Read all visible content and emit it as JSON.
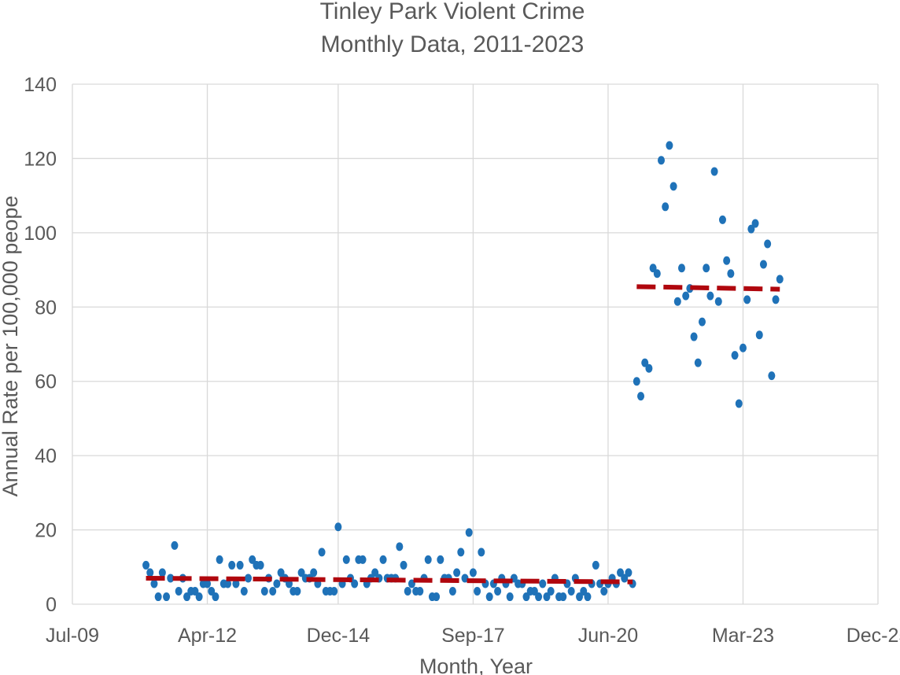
{
  "chart_data": {
    "type": "scatter",
    "title": "Tinley Park Violent Crime",
    "subtitle": "Monthly Data, 2011-2023",
    "xlabel": "Month, Year",
    "ylabel": "Annual Rate per 100,000 peope",
    "ylim": [
      0,
      140
    ],
    "xlim": [
      "2009-07",
      "2025-12"
    ],
    "grid": true,
    "y_ticks": [
      0,
      20,
      40,
      60,
      80,
      100,
      120,
      140
    ],
    "x_ticks": [
      {
        "date": "2009-07",
        "label": "Jul-09"
      },
      {
        "date": "2012-04",
        "label": "Apr-12"
      },
      {
        "date": "2014-12",
        "label": "Dec-14"
      },
      {
        "date": "2017-09",
        "label": "Sep-17"
      },
      {
        "date": "2020-06",
        "label": "Jun-20"
      },
      {
        "date": "2023-03",
        "label": "Mar-23"
      },
      {
        "date": "2025-12",
        "label": "Dec-25"
      }
    ],
    "series": [
      {
        "color": "#1f72b8",
        "points": [
          [
            "2011-01",
            10.5
          ],
          [
            "2011-02",
            8.5
          ],
          [
            "2011-03",
            5.5
          ],
          [
            "2011-04",
            2
          ],
          [
            "2011-05",
            8.5
          ],
          [
            "2011-06",
            2
          ],
          [
            "2011-07",
            7
          ],
          [
            "2011-08",
            15.8
          ],
          [
            "2011-09",
            3.5
          ],
          [
            "2011-10",
            7
          ],
          [
            "2011-11",
            2
          ],
          [
            "2011-12",
            3.5
          ],
          [
            "2012-01",
            3.5
          ],
          [
            "2012-02",
            2
          ],
          [
            "2012-03",
            5.5
          ],
          [
            "2012-04",
            5.5
          ],
          [
            "2012-05",
            3.5
          ],
          [
            "2012-06",
            2
          ],
          [
            "2012-07",
            12
          ],
          [
            "2012-08",
            5.5
          ],
          [
            "2012-09",
            5.5
          ],
          [
            "2012-10",
            10.5
          ],
          [
            "2012-11",
            5.5
          ],
          [
            "2012-12",
            10.5
          ],
          [
            "2013-01",
            3.5
          ],
          [
            "2013-02",
            7
          ],
          [
            "2013-03",
            12
          ],
          [
            "2013-04",
            10.5
          ],
          [
            "2013-05",
            10.5
          ],
          [
            "2013-06",
            3.5
          ],
          [
            "2013-07",
            7
          ],
          [
            "2013-08",
            3.5
          ],
          [
            "2013-09",
            5.5
          ],
          [
            "2013-10",
            8.5
          ],
          [
            "2013-11",
            7
          ],
          [
            "2013-12",
            5.5
          ],
          [
            "2014-01",
            3.5
          ],
          [
            "2014-02",
            3.5
          ],
          [
            "2014-03",
            8.5
          ],
          [
            "2014-04",
            7
          ],
          [
            "2014-05",
            7
          ],
          [
            "2014-06",
            8.5
          ],
          [
            "2014-07",
            5.5
          ],
          [
            "2014-08",
            14
          ],
          [
            "2014-09",
            3.5
          ],
          [
            "2014-10",
            3.5
          ],
          [
            "2014-11",
            3.5
          ],
          [
            "2014-12",
            20.8
          ],
          [
            "2015-01",
            5.5
          ],
          [
            "2015-02",
            12
          ],
          [
            "2015-03",
            7
          ],
          [
            "2015-04",
            5.5
          ],
          [
            "2015-05",
            12
          ],
          [
            "2015-06",
            12
          ],
          [
            "2015-07",
            5.5
          ],
          [
            "2015-08",
            7
          ],
          [
            "2015-09",
            8.5
          ],
          [
            "2015-10",
            7
          ],
          [
            "2015-11",
            12
          ],
          [
            "2015-12",
            7
          ],
          [
            "2016-01",
            7
          ],
          [
            "2016-02",
            7
          ],
          [
            "2016-03",
            15.5
          ],
          [
            "2016-04",
            10.5
          ],
          [
            "2016-05",
            3.5
          ],
          [
            "2016-06",
            5.5
          ],
          [
            "2016-07",
            3.5
          ],
          [
            "2016-08",
            3.5
          ],
          [
            "2016-09",
            7
          ],
          [
            "2016-10",
            12
          ],
          [
            "2016-11",
            2
          ],
          [
            "2016-12",
            2
          ],
          [
            "2017-01",
            12
          ],
          [
            "2017-02",
            7
          ],
          [
            "2017-03",
            7
          ],
          [
            "2017-04",
            3.5
          ],
          [
            "2017-05",
            8.5
          ],
          [
            "2017-06",
            14
          ],
          [
            "2017-07",
            7
          ],
          [
            "2017-08",
            19.3
          ],
          [
            "2017-09",
            8.5
          ],
          [
            "2017-10",
            3.5
          ],
          [
            "2017-11",
            14
          ],
          [
            "2017-12",
            5.5
          ],
          [
            "2018-01",
            2
          ],
          [
            "2018-02",
            5.5
          ],
          [
            "2018-03",
            3.5
          ],
          [
            "2018-04",
            7
          ],
          [
            "2018-05",
            5.5
          ],
          [
            "2018-06",
            2
          ],
          [
            "2018-07",
            7
          ],
          [
            "2018-08",
            5.5
          ],
          [
            "2018-09",
            5.5
          ],
          [
            "2018-10",
            2
          ],
          [
            "2018-11",
            3.5
          ],
          [
            "2018-12",
            3.5
          ],
          [
            "2019-01",
            2
          ],
          [
            "2019-02",
            5.5
          ],
          [
            "2019-03",
            2
          ],
          [
            "2019-04",
            3.5
          ],
          [
            "2019-05",
            7
          ],
          [
            "2019-06",
            2
          ],
          [
            "2019-07",
            2
          ],
          [
            "2019-08",
            5.5
          ],
          [
            "2019-09",
            3.5
          ],
          [
            "2019-10",
            7
          ],
          [
            "2019-11",
            2
          ],
          [
            "2019-12",
            3.5
          ],
          [
            "2020-01",
            2
          ],
          [
            "2020-02",
            5.5
          ],
          [
            "2020-03",
            10.5
          ],
          [
            "2020-04",
            5.5
          ],
          [
            "2020-05",
            3.5
          ],
          [
            "2020-06",
            5.5
          ],
          [
            "2020-07",
            7
          ],
          [
            "2020-08",
            5.5
          ],
          [
            "2020-09",
            8.5
          ],
          [
            "2020-10",
            7
          ],
          [
            "2020-11",
            8.5
          ],
          [
            "2020-12",
            5.5
          ],
          [
            "2021-01",
            60
          ],
          [
            "2021-02",
            56
          ],
          [
            "2021-03",
            65
          ],
          [
            "2021-04",
            63.5
          ],
          [
            "2021-05",
            90.5
          ],
          [
            "2021-06",
            89
          ],
          [
            "2021-07",
            119.5
          ],
          [
            "2021-08",
            107
          ],
          [
            "2021-09",
            123.5
          ],
          [
            "2021-10",
            112.5
          ],
          [
            "2021-11",
            81.5
          ],
          [
            "2021-12",
            90.5
          ],
          [
            "2022-01",
            83
          ],
          [
            "2022-02",
            85
          ],
          [
            "2022-03",
            72
          ],
          [
            "2022-04",
            65
          ],
          [
            "2022-05",
            76
          ],
          [
            "2022-06",
            90.5
          ],
          [
            "2022-07",
            83
          ],
          [
            "2022-08",
            116.5
          ],
          [
            "2022-09",
            81.5
          ],
          [
            "2022-10",
            103.5
          ],
          [
            "2022-11",
            92.5
          ],
          [
            "2022-12",
            89
          ],
          [
            "2023-01",
            67
          ],
          [
            "2023-02",
            54
          ],
          [
            "2023-03",
            69
          ],
          [
            "2023-04",
            82
          ],
          [
            "2023-05",
            101
          ],
          [
            "2023-06",
            102.5
          ],
          [
            "2023-07",
            72.5
          ],
          [
            "2023-08",
            91.5
          ],
          [
            "2023-09",
            97
          ],
          [
            "2023-10",
            61.5
          ],
          [
            "2023-11",
            82
          ],
          [
            "2023-12",
            87.5
          ]
        ]
      }
    ],
    "trendlines": [
      {
        "color": "#b0070e",
        "from": [
          "2011-01",
          7.0
        ],
        "to": [
          "2020-12",
          6.0
        ]
      },
      {
        "color": "#b0070e",
        "from": [
          "2021-01",
          85.5
        ],
        "to": [
          "2023-12",
          84.8
        ]
      }
    ]
  }
}
